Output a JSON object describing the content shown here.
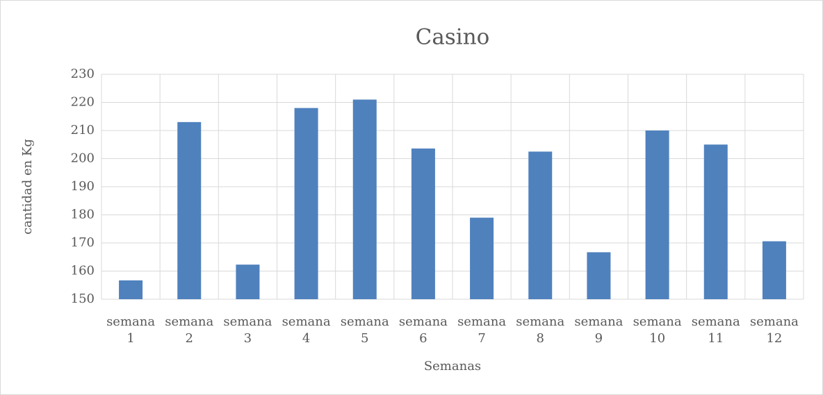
{
  "chart_data": {
    "type": "bar",
    "title": "Casino",
    "x_label": "Semanas",
    "y_label": "cantidad en Kg",
    "categories": [
      "semana 1",
      "semana 2",
      "semana 3",
      "semana 4",
      "semana 5",
      "semana 6",
      "semana 7",
      "semana 8",
      "semana 9",
      "semana 10",
      "semana 11",
      "semana 12"
    ],
    "values": [
      156.7,
      213,
      162.3,
      218,
      221,
      203.6,
      179,
      202.5,
      166.7,
      210,
      205,
      170.6
    ],
    "color": "#4f81bd",
    "ylim": [
      150,
      230
    ],
    "yticks": [
      150,
      160,
      170,
      180,
      190,
      200,
      210,
      220,
      230
    ],
    "grid": true
  }
}
